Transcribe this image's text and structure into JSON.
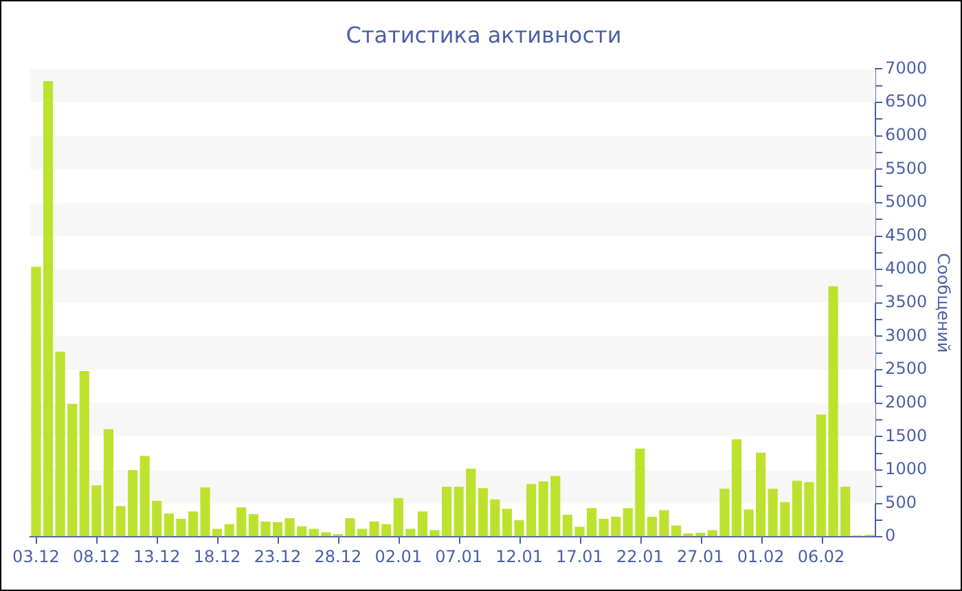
{
  "chart_data": {
    "type": "bar",
    "title": "Статистика активности",
    "ylabel": "Сообщений",
    "categories": [
      "03.12",
      null,
      null,
      null,
      null,
      "08.12",
      null,
      null,
      null,
      null,
      "13.12",
      null,
      null,
      null,
      null,
      "18.12",
      null,
      null,
      null,
      null,
      "23.12",
      null,
      null,
      null,
      null,
      "28.12",
      null,
      null,
      null,
      null,
      "02.01",
      null,
      null,
      null,
      null,
      "07.01",
      null,
      null,
      null,
      null,
      "12.01",
      null,
      null,
      null,
      null,
      "17.01",
      null,
      null,
      null,
      null,
      "22.01",
      null,
      null,
      null,
      null,
      "27.01",
      null,
      null,
      null,
      null,
      "01.02",
      null,
      null,
      null,
      null,
      "06.02",
      null,
      null,
      null,
      null
    ],
    "values": [
      4040,
      6820,
      2770,
      1990,
      2480,
      770,
      1610,
      460,
      1000,
      1210,
      540,
      350,
      270,
      380,
      740,
      120,
      190,
      440,
      340,
      230,
      220,
      280,
      160,
      120,
      70,
      40,
      280,
      120,
      230,
      190,
      580,
      120,
      380,
      100,
      750,
      750,
      1020,
      730,
      560,
      420,
      250,
      790,
      830,
      910,
      330,
      150,
      430,
      270,
      300,
      430,
      1320,
      300,
      400,
      170,
      50,
      60,
      100,
      720,
      1460,
      410,
      1260,
      720,
      520,
      840,
      820,
      1830,
      3750,
      750,
      20,
      30
    ],
    "color": "#bde22e",
    "ylim": [
      0,
      7000
    ],
    "yticks": [
      0,
      {
        "value": 250,
        "label": null
      },
      500,
      {
        "value": 750,
        "label": null
      },
      1000,
      {
        "value": 1250,
        "label": null
      },
      1500,
      {
        "value": 1750,
        "label": null
      },
      2000,
      {
        "value": 2250,
        "label": null
      },
      2500,
      {
        "value": 2750,
        "label": null
      },
      3000,
      {
        "value": 3250,
        "label": null
      },
      3500,
      {
        "value": 3750,
        "label": null
      },
      4000,
      {
        "value": 4250,
        "label": null
      },
      4500,
      {
        "value": 4750,
        "label": null
      },
      5000,
      {
        "value": 5250,
        "label": null
      },
      5500,
      {
        "value": 5750,
        "label": null
      },
      6000,
      {
        "value": 6250,
        "label": null
      },
      6500,
      {
        "value": 6750,
        "label": null
      },
      7000
    ],
    "bands": [
      {
        "axis": "y",
        "from": 500,
        "to": 1000,
        "color": "#f7f7f7"
      },
      {
        "axis": "y",
        "from": 1500,
        "to": 2000,
        "color": "#f7f7f7"
      },
      {
        "axis": "y",
        "from": 2500,
        "to": 3000,
        "color": "#f7f7f7"
      },
      {
        "axis": "y",
        "from": 3500,
        "to": 4000,
        "color": "#f7f7f7"
      },
      {
        "axis": "y",
        "from": 4500,
        "to": 5000,
        "color": "#f7f7f7"
      },
      {
        "axis": "y",
        "from": 5500,
        "to": 6000,
        "color": "#f7f7f7"
      },
      {
        "axis": "y",
        "from": 6500,
        "to": 7000,
        "color": "#f7f7f7"
      }
    ],
    "legend": false
  }
}
